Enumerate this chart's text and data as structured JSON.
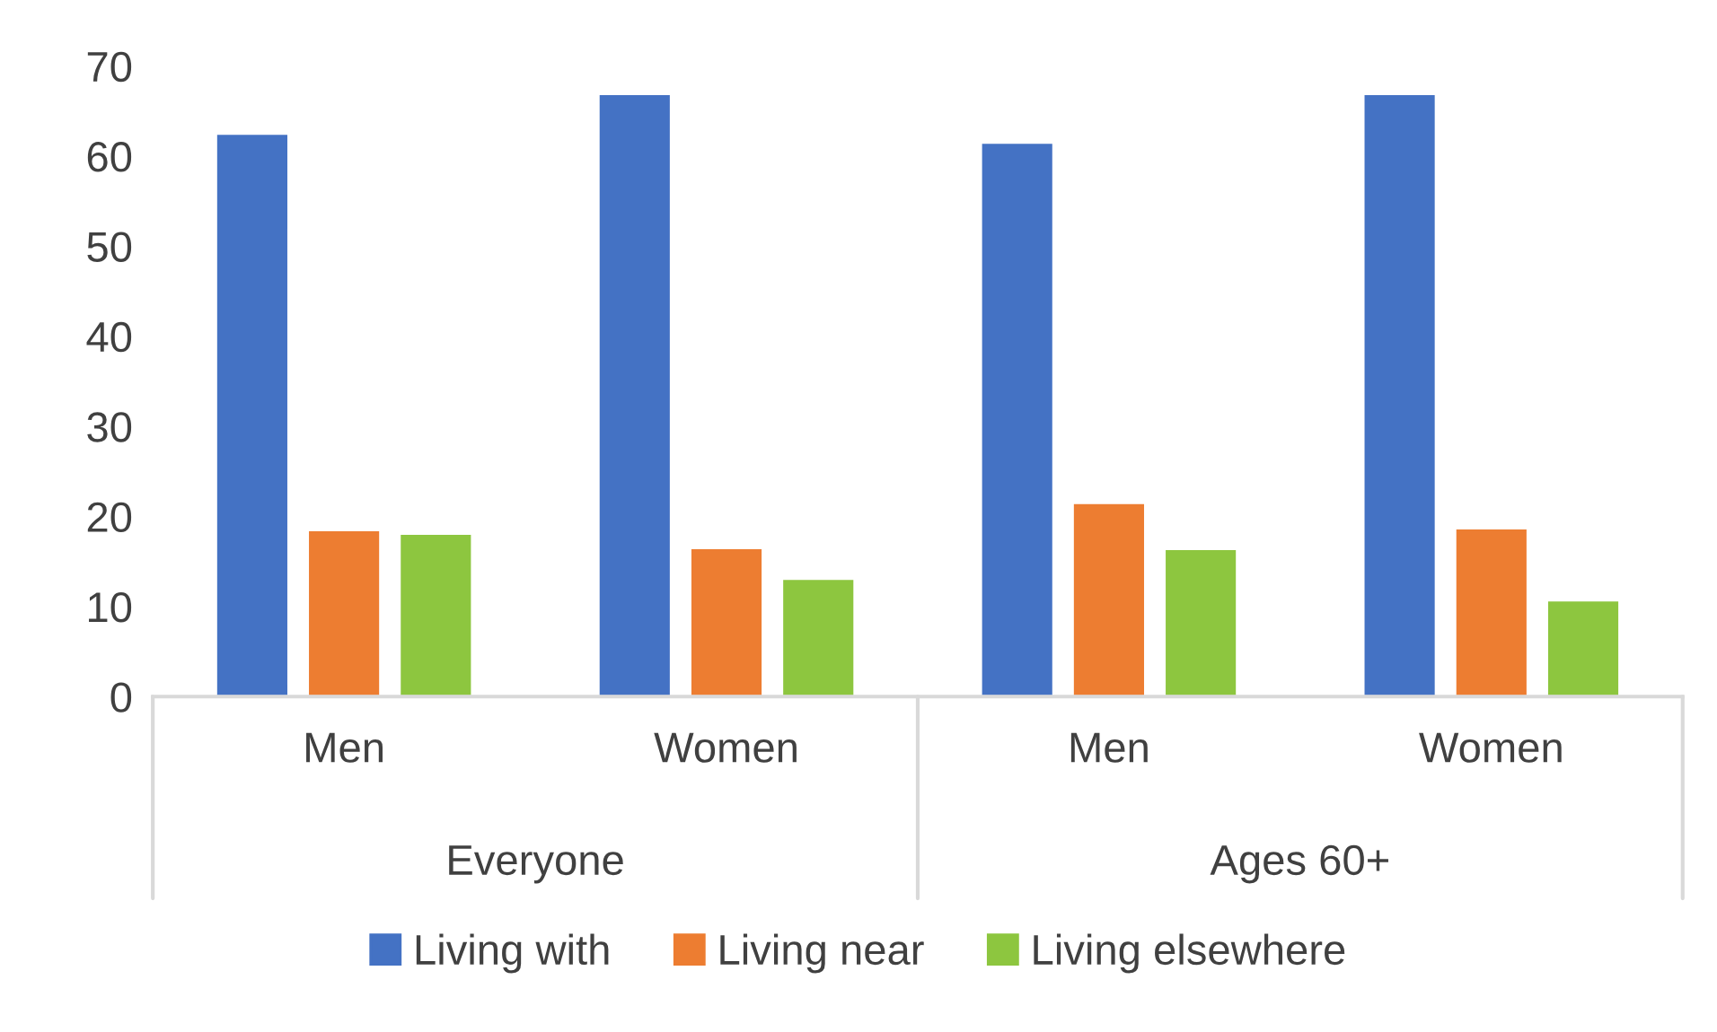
{
  "chart_data": {
    "type": "bar",
    "categories": [
      "Men",
      "Women",
      "Men",
      "Women"
    ],
    "series": [
      {
        "name": "Living with",
        "color": "#4472c4",
        "values": [
          62.5,
          66.9,
          61.5,
          66.9
        ]
      },
      {
        "name": "Living near",
        "color": "#ed7d31",
        "values": [
          18.5,
          16.5,
          21.5,
          18.7
        ]
      },
      {
        "name": "Living elsewhere",
        "color": "#8dc63f",
        "values": [
          18.1,
          13.1,
          16.4,
          10.7
        ]
      }
    ],
    "annotations": [
      "Everyone",
      "Ages 60+"
    ],
    "ylim": [
      0,
      70
    ],
    "yticks": [
      0,
      10,
      20,
      30,
      40,
      50,
      60,
      70
    ],
    "grid": false,
    "legend": "bottom"
  }
}
